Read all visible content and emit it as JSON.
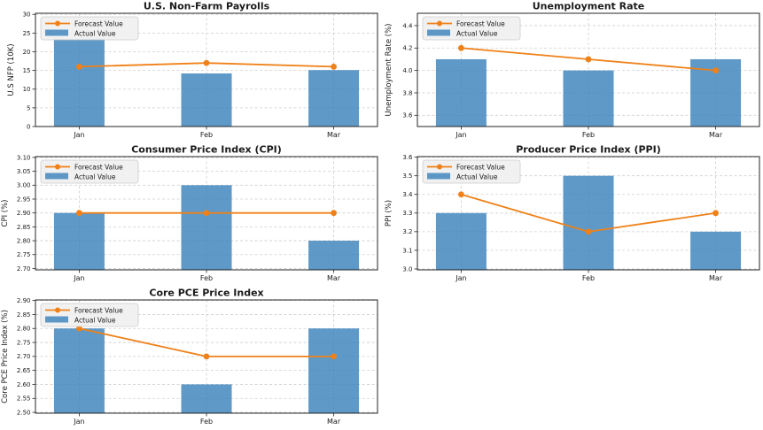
{
  "figure": {
    "background": "#ffffff",
    "columns": 2,
    "rows": 3
  },
  "colors": {
    "bar_fill": "#3b82bc",
    "bar_opacity": 0.82,
    "bar_effective": "#5b9bc8",
    "line": "#ef8118",
    "grid": "#c9c9c9",
    "spine": "#262626",
    "text": "#1a1a1a",
    "legend_bg": "#f0f0f0",
    "legend_border": "#cccccc"
  },
  "legend": {
    "forecast_label": "Forecast Value",
    "actual_label": "Actual Value",
    "position": "upper left"
  },
  "categories": [
    "Jan",
    "Feb",
    "Mar"
  ],
  "chart_data": [
    {
      "id": "nfp",
      "type": "bar",
      "title": "U.S. Non-Farm Payrolls",
      "xlabel": "",
      "ylabel": "U.S NFP (10K)",
      "categories": [
        "Jan",
        "Feb",
        "Mar"
      ],
      "series": [
        {
          "name": "Forecast Value",
          "type": "line",
          "values": [
            16,
            17,
            16
          ]
        },
        {
          "name": "Actual Value",
          "type": "bar",
          "values": [
            23.5,
            14.2,
            15.1
          ]
        }
      ],
      "ylim": [
        0,
        30.3
      ],
      "yticks": [
        0,
        5,
        10,
        15,
        20,
        25,
        30
      ],
      "ytick_labels": [
        "0",
        "5",
        "10",
        "15",
        "20",
        "25",
        "30"
      ],
      "grid": true,
      "legend_position": "upper left",
      "grid_cell": {
        "row": 0,
        "col": 0
      }
    },
    {
      "id": "unemployment",
      "type": "bar",
      "title": "Unemployment Rate",
      "xlabel": "",
      "ylabel": "Unemployment Rate (%)",
      "categories": [
        "Jan",
        "Feb",
        "Mar"
      ],
      "series": [
        {
          "name": "Forecast Value",
          "type": "line",
          "values": [
            4.2,
            4.1,
            4.0
          ]
        },
        {
          "name": "Actual Value",
          "type": "bar",
          "values": [
            4.1,
            4.0,
            4.1
          ]
        }
      ],
      "ylim": [
        3.5,
        4.51
      ],
      "yticks": [
        3.6,
        3.8,
        4.0,
        4.2,
        4.4
      ],
      "ytick_labels": [
        "3.6",
        "3.8",
        "4.0",
        "4.2",
        "4.4"
      ],
      "grid": true,
      "legend_position": "upper left",
      "grid_cell": {
        "row": 0,
        "col": 1
      }
    },
    {
      "id": "cpi",
      "type": "bar",
      "title": "Consumer Price Index (CPI)",
      "xlabel": "",
      "ylabel": "CPI (%)",
      "categories": [
        "Jan",
        "Feb",
        "Mar"
      ],
      "series": [
        {
          "name": "Forecast Value",
          "type": "line",
          "values": [
            2.9,
            2.9,
            2.9
          ]
        },
        {
          "name": "Actual Value",
          "type": "bar",
          "values": [
            2.9,
            3.0,
            2.8
          ]
        }
      ],
      "ylim": [
        2.695,
        3.103
      ],
      "yticks": [
        2.7,
        2.75,
        2.8,
        2.85,
        2.9,
        2.95,
        3.0,
        3.05,
        3.1
      ],
      "ytick_labels": [
        "2.70",
        "2.75",
        "2.80",
        "2.85",
        "2.90",
        "2.95",
        "3.00",
        "3.05",
        "3.10"
      ],
      "grid": true,
      "legend_position": "upper left",
      "grid_cell": {
        "row": 1,
        "col": 0
      }
    },
    {
      "id": "ppi",
      "type": "bar",
      "title": "Producer Price Index (PPI)",
      "xlabel": "",
      "ylabel": "PPI (%)",
      "categories": [
        "Jan",
        "Feb",
        "Mar"
      ],
      "series": [
        {
          "name": "Forecast Value",
          "type": "line",
          "values": [
            3.4,
            3.2,
            3.3
          ]
        },
        {
          "name": "Actual Value",
          "type": "bar",
          "values": [
            3.3,
            3.5,
            3.2
          ]
        }
      ],
      "ylim": [
        2.995,
        3.603
      ],
      "yticks": [
        3.0,
        3.1,
        3.2,
        3.3,
        3.4,
        3.5,
        3.6
      ],
      "ytick_labels": [
        "3.0",
        "3.1",
        "3.2",
        "3.3",
        "3.4",
        "3.5",
        "3.6"
      ],
      "grid": true,
      "legend_position": "upper left",
      "grid_cell": {
        "row": 1,
        "col": 1
      }
    },
    {
      "id": "core-pce",
      "type": "bar",
      "title": "Core PCE Price Index",
      "xlabel": "",
      "ylabel": "Core PCE Price Index (%)",
      "categories": [
        "Jan",
        "Feb",
        "Mar"
      ],
      "series": [
        {
          "name": "Forecast Value",
          "type": "line",
          "values": [
            2.8,
            2.7,
            2.7
          ]
        },
        {
          "name": "Actual Value",
          "type": "bar",
          "values": [
            2.8,
            2.6,
            2.8
          ]
        }
      ],
      "ylim": [
        2.497,
        2.902
      ],
      "yticks": [
        2.5,
        2.55,
        2.6,
        2.65,
        2.7,
        2.75,
        2.8,
        2.85,
        2.9
      ],
      "ytick_labels": [
        "2.50",
        "2.55",
        "2.60",
        "2.65",
        "2.70",
        "2.75",
        "2.80",
        "2.85",
        "2.90"
      ],
      "grid": true,
      "legend_position": "upper left",
      "grid_cell": {
        "row": 2,
        "col": 0
      }
    }
  ]
}
